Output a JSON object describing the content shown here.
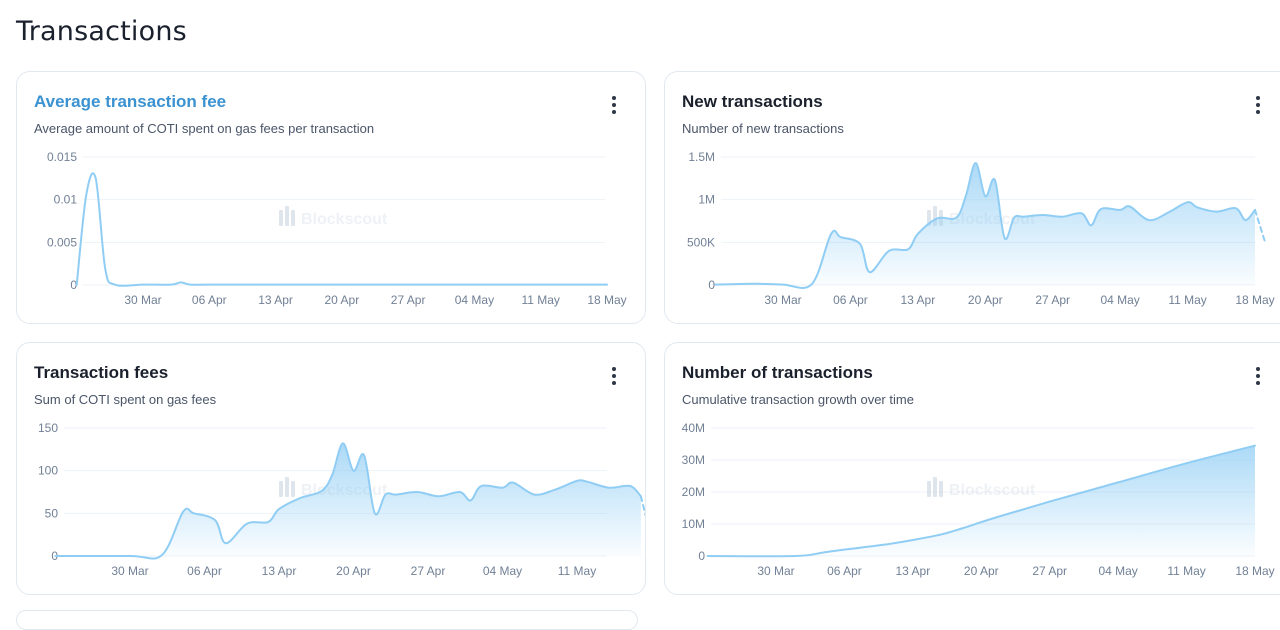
{
  "page": {
    "title": "Transactions"
  },
  "watermark": "Blockscout",
  "cards": [
    {
      "id": "avg-fee",
      "title": "Average transaction fee",
      "description": "Average amount of COTI spent on gas fees per transaction",
      "title_color": "#3b92d1",
      "chart_data": {
        "type": "line",
        "title": "Average transaction fee",
        "x_ticks": [
          "30 Mar",
          "06 Apr",
          "13 Apr",
          "20 Apr",
          "27 Apr",
          "04 May",
          "11 May",
          "18 May"
        ],
        "y_ticks": [
          "0",
          "0.005",
          "0.01",
          "0.015"
        ],
        "ylim": [
          0,
          0.015
        ],
        "xlim": [
          "2025-03-23",
          "2025-05-18"
        ],
        "series": [
          {
            "x": [
              "2025-03-23",
              "2025-03-24",
              "2025-03-25",
              "2025-03-26",
              "2025-03-27",
              "2025-03-30",
              "2025-04-02",
              "2025-04-03",
              "2025-04-04",
              "2025-04-06",
              "2025-04-13",
              "2025-04-20",
              "2025-04-27",
              "2025-05-04",
              "2025-05-11",
              "2025-05-18"
            ],
            "values": [
              0,
              0.0105,
              0.0125,
              0.002,
              5e-05,
              5e-05,
              5e-05,
              0.0003,
              5e-05,
              5e-05,
              5e-05,
              5e-05,
              5e-05,
              5e-05,
              5e-05,
              5e-05
            ]
          }
        ],
        "fill": false,
        "grid": true,
        "color": "#90cdf4"
      }
    },
    {
      "id": "new-tx",
      "title": "New transactions",
      "description": "Number of new transactions",
      "title_color": "#1a202c",
      "chart_data": {
        "type": "area",
        "title": "New transactions",
        "x_ticks": [
          "30 Mar",
          "06 Apr",
          "13 Apr",
          "20 Apr",
          "27 Apr",
          "04 May",
          "11 May",
          "18 May"
        ],
        "y_ticks": [
          "0",
          "500K",
          "1M",
          "1.5M"
        ],
        "ylim": [
          0,
          1500000
        ],
        "xlim": [
          "2025-03-23",
          "2025-05-18"
        ],
        "series": [
          {
            "x": [
              "2025-03-23",
              "2025-03-27",
              "2025-03-30",
              "2025-04-02",
              "2025-04-04",
              "2025-04-05",
              "2025-04-07",
              "2025-04-08",
              "2025-04-10",
              "2025-04-12",
              "2025-04-13",
              "2025-04-15",
              "2025-04-17",
              "2025-04-18",
              "2025-04-19",
              "2025-04-20",
              "2025-04-21",
              "2025-04-22",
              "2025-04-23",
              "2025-04-24",
              "2025-04-26",
              "2025-04-28",
              "2025-04-30",
              "2025-05-01",
              "2025-05-02",
              "2025-05-04",
              "2025-05-05",
              "2025-05-07",
              "2025-05-09",
              "2025-05-11",
              "2025-05-12",
              "2025-05-14",
              "2025-05-16",
              "2025-05-17",
              "2025-05-18"
            ],
            "values": [
              5000,
              15000,
              5000,
              10000,
              600000,
              560000,
              480000,
              150000,
              400000,
              420000,
              600000,
              780000,
              790000,
              1050000,
              1430000,
              1040000,
              1230000,
              550000,
              790000,
              800000,
              820000,
              800000,
              840000,
              700000,
              890000,
              880000,
              920000,
              760000,
              850000,
              970000,
              910000,
              860000,
              900000,
              760000,
              880000
            ]
          },
          {
            "x": [
              "2025-05-18",
              "2025-05-19"
            ],
            "values": [
              880000,
              520000
            ],
            "dashed": true
          }
        ],
        "fill": true,
        "grid": true,
        "color": "#90cdf4"
      }
    },
    {
      "id": "tx-fees",
      "title": "Transaction fees",
      "description": "Sum of COTI spent on gas fees",
      "title_color": "#1a202c",
      "chart_data": {
        "type": "area",
        "title": "Transaction fees",
        "x_ticks": [
          "30 Mar",
          "06 Apr",
          "13 Apr",
          "20 Apr",
          "27 Apr",
          "04 May",
          "11 May"
        ],
        "y_ticks": [
          "0",
          "50",
          "100",
          "150"
        ],
        "ylim": [
          0,
          150
        ],
        "xlim": [
          "2025-03-23",
          "2025-05-17"
        ],
        "series": [
          {
            "x": [
              "2025-03-23",
              "2025-03-30",
              "2025-04-02",
              "2025-04-04",
              "2025-04-05",
              "2025-04-07",
              "2025-04-08",
              "2025-04-10",
              "2025-04-12",
              "2025-04-13",
              "2025-04-15",
              "2025-04-17",
              "2025-04-18",
              "2025-04-19",
              "2025-04-20",
              "2025-04-21",
              "2025-04-22",
              "2025-04-23",
              "2025-04-24",
              "2025-04-26",
              "2025-04-28",
              "2025-04-30",
              "2025-05-01",
              "2025-05-02",
              "2025-05-04",
              "2025-05-05",
              "2025-05-07",
              "2025-05-09",
              "2025-05-11",
              "2025-05-12",
              "2025-05-14",
              "2025-05-16",
              "2025-05-17"
            ],
            "values": [
              0,
              0,
              1,
              52,
              50,
              42,
              15,
              38,
              40,
              55,
              68,
              76,
              95,
              132,
              100,
              118,
              50,
              72,
              72,
              75,
              70,
              75,
              65,
              82,
              80,
              86,
              72,
              78,
              88,
              87,
              80,
              82,
              70
            ]
          },
          {
            "x": [
              "2025-05-17",
              "2025-05-18"
            ],
            "values": [
              70,
              20
            ],
            "dashed": true
          }
        ],
        "fill": true,
        "grid": true,
        "color": "#90cdf4"
      }
    },
    {
      "id": "num-tx",
      "title": "Number of transactions",
      "description": "Cumulative transaction growth over time",
      "title_color": "#1a202c",
      "chart_data": {
        "type": "area",
        "title": "Number of transactions",
        "x_ticks": [
          "30 Mar",
          "06 Apr",
          "13 Apr",
          "20 Apr",
          "27 Apr",
          "04 May",
          "11 May",
          "18 May"
        ],
        "y_ticks": [
          "0",
          "10M",
          "20M",
          "30M",
          "40M"
        ],
        "ylim": [
          0,
          40000000
        ],
        "xlim": [
          "2025-03-23",
          "2025-05-18"
        ],
        "series": [
          {
            "x": [
              "2025-03-23",
              "2025-04-01",
              "2025-04-04",
              "2025-04-06",
              "2025-04-10",
              "2025-04-13",
              "2025-04-16",
              "2025-04-18",
              "2025-04-20",
              "2025-04-22",
              "2025-04-27",
              "2025-05-04",
              "2025-05-11",
              "2025-05-18"
            ],
            "values": [
              0,
              0,
              1200000,
              2000000,
              3500000,
              5000000,
              6800000,
              8600000,
              10600000,
              12500000,
              17000000,
              23000000,
              29000000,
              34500000
            ]
          }
        ],
        "fill": true,
        "grid": true,
        "color": "#90cdf4"
      }
    }
  ]
}
